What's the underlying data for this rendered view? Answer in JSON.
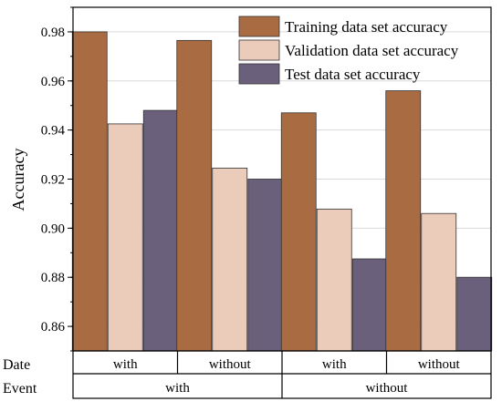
{
  "chart_data": {
    "type": "bar",
    "title": "",
    "xlabel": "",
    "ylabel": "Accuracy",
    "ylim": [
      0.85,
      0.99
    ],
    "yticks": [
      "0.86",
      "0.88",
      "0.90",
      "0.92",
      "0.94",
      "0.96",
      "0.98"
    ],
    "yticks_values": [
      0.86,
      0.88,
      0.9,
      0.92,
      0.94,
      0.96,
      0.98
    ],
    "grid": true,
    "legend_position": "top-right",
    "categories": [
      "with",
      "without",
      "with",
      "without"
    ],
    "category_rows": [
      {
        "label": "Date",
        "groups": [
          "with",
          "without",
          "with",
          "without"
        ]
      },
      {
        "label": "Event",
        "groups": [
          "with",
          "without"
        ]
      }
    ],
    "series": [
      {
        "name": "Training data set accuracy",
        "color": "#A96C42",
        "values": [
          0.98,
          0.9765,
          0.947,
          0.956
        ]
      },
      {
        "name": "Validation data set accuracy",
        "color": "#EBCBBA",
        "values": [
          0.9425,
          0.9245,
          0.9078,
          0.906
        ]
      },
      {
        "name": "Test data set accuracy",
        "color": "#6B607B",
        "values": [
          0.948,
          0.92,
          0.8875,
          0.88
        ]
      }
    ]
  }
}
